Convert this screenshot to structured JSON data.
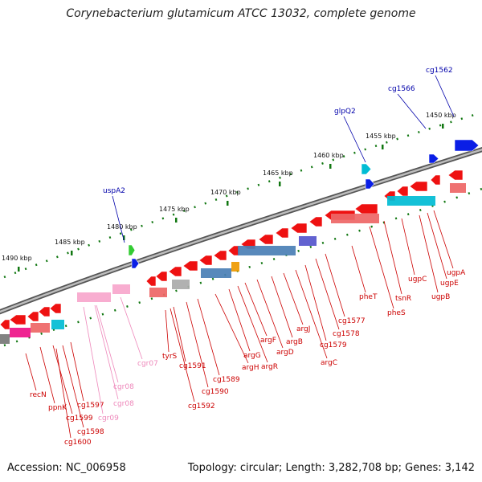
{
  "title": "Corynebacterium glutamicum ATCC 13032, complete genome",
  "footer": {
    "accession": "Accession: NC_006958",
    "summary": "Topology: circular; Length: 3,282,708 bp; Genes: 3,142"
  },
  "colors": {
    "forward_gene": "#ee1111",
    "reverse_gene": "#ee1111",
    "forward_label": "#0000aa",
    "reverse_label": "#cc0000",
    "rna_label": "#ee88bb",
    "ruler": "#117711",
    "backbone": "#888888",
    "rna_gene": "#f7a6cc",
    "cyan_gene": "#00bcd4",
    "steel_gene": "#4a7fb5",
    "blue_gene": "#0a1ee6"
  },
  "ruler_ticks": [
    "1450 kbp",
    "1455 kbp",
    "1460 kbp",
    "1465 kbp",
    "1470 kbp",
    "1475 kbp",
    "1480 kbp",
    "1485 kbp",
    "1490 kbp"
  ],
  "forward_labels": [
    "cg1562",
    "cg1566",
    "glpQ2",
    "uspA2"
  ],
  "reverse_labels": [
    "ugpA",
    "ugpE",
    "ugpB",
    "ugpC",
    "tsnR",
    "pheS",
    "pheT",
    "cg1577",
    "cg1578",
    "cg1579",
    "argC",
    "argJ",
    "argB",
    "argD",
    "argF",
    "argR",
    "argG",
    "argH",
    "cg1589",
    "cg1590",
    "cg1591",
    "cg1592",
    "tyrS",
    "recN",
    "ppnK",
    "cg1597",
    "cg1598",
    "cg1599",
    "cg1600"
  ],
  "rna_labels": [
    "cgr07",
    "cgr08",
    "cgr08",
    "cgr09"
  ]
}
